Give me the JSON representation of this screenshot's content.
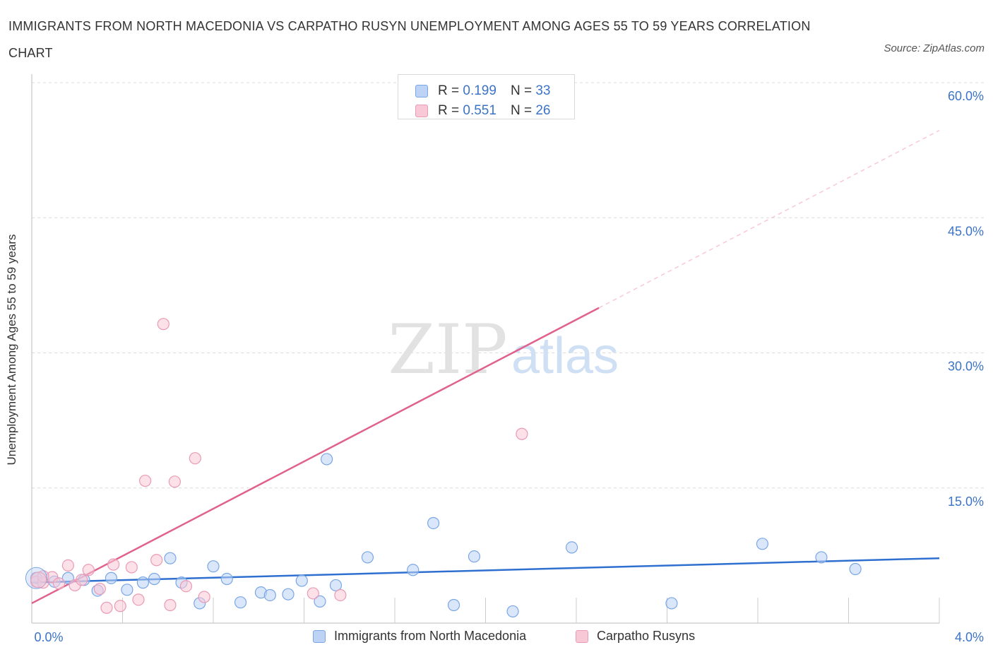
{
  "title": "IMMIGRANTS FROM NORTH MACEDONIA VS CARPATHO RUSYN UNEMPLOYMENT AMONG AGES 55 TO 59 YEARS CORRELATION CHART",
  "source": "Source: ZipAtlas.com",
  "watermark": {
    "zip": "ZIP",
    "atlas": "atlas"
  },
  "legend_top": {
    "rows": [
      {
        "r_label": "R =",
        "r_value": "0.199",
        "n_label": "N =",
        "n_value": "33"
      },
      {
        "r_label": "R =",
        "r_value": "0.551",
        "n_label": "N =",
        "n_value": "26"
      }
    ]
  },
  "legend_bottom": [
    "Immigrants from North Macedonia",
    "Carpatho Rusyns"
  ],
  "colors": {
    "blue_fill": "#bcd3f5",
    "blue_stroke": "#7aa6e6",
    "blue_line": "#2f6fcf",
    "pink_fill": "#f9c8d7",
    "pink_stroke": "#ea9ab4",
    "pink_line": "#e0628c",
    "axis_label": "#3b74c7",
    "grid": "#dcdcdc"
  },
  "chart_data": {
    "type": "scatter",
    "title": "IMMIGRANTS FROM NORTH MACEDONIA VS CARPATHO RUSYN UNEMPLOYMENT AMONG AGES 55 TO 59 YEARS CORRELATION CHART",
    "xlabel": "",
    "ylabel": "Unemployment Among Ages 55 to 59 years",
    "xlim": [
      0,
      4.0
    ],
    "ylim": [
      0,
      60.0
    ],
    "x_tick_labels": [
      "0.0%",
      "4.0%"
    ],
    "y_ticks": [
      15,
      30,
      45,
      60
    ],
    "y_tick_labels": [
      "15.0%",
      "30.0%",
      "45.0%",
      "60.0%"
    ],
    "series": [
      {
        "name": "Immigrants from North Macedonia",
        "color": "#bcd3f5",
        "R": 0.199,
        "N": 33,
        "trend": {
          "x": [
            0.0,
            4.0
          ],
          "y": [
            4.5,
            7.2
          ],
          "style": "solid"
        },
        "points": [
          [
            0.02,
            5.0
          ],
          [
            0.1,
            4.6
          ],
          [
            0.16,
            5.0
          ],
          [
            0.23,
            4.8
          ],
          [
            0.29,
            3.6
          ],
          [
            0.35,
            5.0
          ],
          [
            0.42,
            3.7
          ],
          [
            0.49,
            4.5
          ],
          [
            0.54,
            4.9
          ],
          [
            0.61,
            7.2
          ],
          [
            0.66,
            4.5
          ],
          [
            0.74,
            2.2
          ],
          [
            0.8,
            6.3
          ],
          [
            0.86,
            4.9
          ],
          [
            0.92,
            2.3
          ],
          [
            1.01,
            3.4
          ],
          [
            1.05,
            3.1
          ],
          [
            1.13,
            3.2
          ],
          [
            1.19,
            4.7
          ],
          [
            1.27,
            2.4
          ],
          [
            1.34,
            4.2
          ],
          [
            1.3,
            18.2
          ],
          [
            1.48,
            7.3
          ],
          [
            1.68,
            5.9
          ],
          [
            1.77,
            11.1
          ],
          [
            1.86,
            2.0
          ],
          [
            1.95,
            7.4
          ],
          [
            2.12,
            1.3
          ],
          [
            2.38,
            8.4
          ],
          [
            2.82,
            2.2
          ],
          [
            3.22,
            8.8
          ],
          [
            3.48,
            7.3
          ],
          [
            3.63,
            6.0
          ]
        ]
      },
      {
        "name": "Carpatho Rusyns",
        "color": "#f9c8d7",
        "R": 0.551,
        "N": 26,
        "trend": {
          "x": [
            0.0,
            2.5
          ],
          "y": [
            2.2,
            35.0
          ],
          "style": "solid",
          "extended": {
            "x": [
              2.5,
              4.0
            ],
            "y": [
              35.0,
              54.7
            ],
            "style": "dashed"
          }
        },
        "points": [
          [
            0.02,
            4.6
          ],
          [
            0.05,
            4.5
          ],
          [
            0.09,
            5.1
          ],
          [
            0.16,
            6.4
          ],
          [
            0.19,
            4.2
          ],
          [
            0.25,
            5.9
          ],
          [
            0.3,
            3.8
          ],
          [
            0.33,
            1.7
          ],
          [
            0.36,
            6.5
          ],
          [
            0.39,
            1.9
          ],
          [
            0.44,
            6.2
          ],
          [
            0.47,
            2.6
          ],
          [
            0.5,
            15.8
          ],
          [
            0.55,
            7.0
          ],
          [
            0.58,
            33.2
          ],
          [
            0.61,
            2.0
          ],
          [
            0.63,
            15.7
          ],
          [
            0.68,
            4.1
          ],
          [
            0.72,
            18.3
          ],
          [
            0.76,
            2.9
          ],
          [
            1.24,
            3.3
          ],
          [
            1.36,
            3.1
          ],
          [
            2.16,
            21.0
          ],
          [
            0.12,
            4.4
          ],
          [
            0.22,
            4.8
          ],
          [
            0.05,
            5.2
          ]
        ]
      }
    ]
  }
}
